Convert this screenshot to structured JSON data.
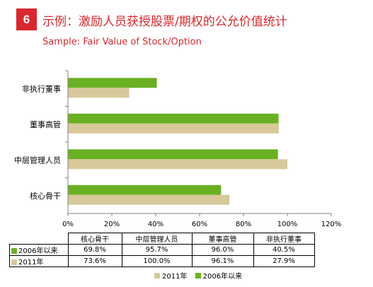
{
  "header": {
    "badge": "6",
    "title": "示例：激励人员获授股票/期权的公允价值统计",
    "subtitle": "Sample: Fair Value of Stock/Option"
  },
  "colors": {
    "accent": "#d7282f",
    "series_2006": "#6ab023",
    "series_2011": "#d7c99a"
  },
  "chart_data": {
    "type": "bar",
    "orientation": "horizontal",
    "categories": [
      "非执行董事",
      "董事高管",
      "中层管理人员",
      "核心骨干"
    ],
    "series": [
      {
        "name": "2006年以来",
        "values": [
          40.5,
          96.0,
          95.7,
          69.8
        ]
      },
      {
        "name": "2011年",
        "values": [
          27.9,
          96.1,
          100.0,
          73.6
        ]
      }
    ],
    "xlim": [
      0,
      120
    ],
    "x_ticks": [
      "0%",
      "20%",
      "40%",
      "60%",
      "80%",
      "100%",
      "120%"
    ],
    "grid": false,
    "legend": [
      "2011年",
      "2006年以来"
    ],
    "legend_position": "bottom"
  },
  "table": {
    "columns": [
      "核心骨干",
      "中层管理人员",
      "董事高管",
      "非执行董事"
    ],
    "rows": [
      {
        "label": "2006年以来",
        "values": [
          "69.8%",
          "95.7%",
          "96.0%",
          "40.5%"
        ]
      },
      {
        "label": "2011年",
        "values": [
          "73.6%",
          "100.0%",
          "96.1%",
          "27.9%"
        ]
      }
    ]
  }
}
